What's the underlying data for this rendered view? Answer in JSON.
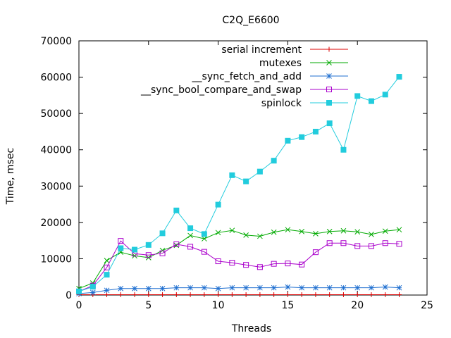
{
  "chart_data": {
    "type": "line",
    "title": "C2Q_E6600",
    "xlabel": "Threads",
    "ylabel": "Time, msec",
    "xlim": [
      0,
      25
    ],
    "ylim": [
      0,
      70000
    ],
    "xticks": [
      "0",
      "5",
      "10",
      "15",
      "20",
      "25"
    ],
    "yticks": [
      "0",
      "10000",
      "20000",
      "30000",
      "40000",
      "50000",
      "60000",
      "70000"
    ],
    "grid": false,
    "legend_position": "top-right",
    "x": [
      0,
      1,
      2,
      3,
      4,
      5,
      6,
      7,
      8,
      9,
      10,
      11,
      12,
      13,
      14,
      15,
      16,
      17,
      18,
      19,
      20,
      21,
      22,
      23
    ],
    "series": [
      {
        "name": "serial increment",
        "color": "#dd0000",
        "marker": "plus",
        "values": [
          100,
          100,
          100,
          100,
          100,
          100,
          100,
          100,
          100,
          100,
          100,
          100,
          100,
          100,
          100,
          100,
          100,
          100,
          100,
          100,
          100,
          100,
          100,
          100
        ]
      },
      {
        "name": "mutexes",
        "color": "#00aa00",
        "marker": "cross",
        "values": [
          1800,
          3300,
          9500,
          11800,
          10800,
          10300,
          12300,
          13700,
          16400,
          15500,
          17200,
          17800,
          16500,
          16200,
          17300,
          18000,
          17500,
          16900,
          17500,
          17700,
          17400,
          16700,
          17600,
          18000
        ]
      },
      {
        "name": "__sync_fetch_and_add",
        "color": "#1f6fd0",
        "marker": "star",
        "values": [
          400,
          700,
          1300,
          1800,
          1800,
          1800,
          1800,
          2000,
          2000,
          2000,
          1800,
          2000,
          2000,
          2000,
          2000,
          2200,
          2000,
          2000,
          2000,
          2000,
          2000,
          2000,
          2200,
          2000
        ]
      },
      {
        "name": "__sync_bool_compare_and_swap",
        "color": "#aa00cc",
        "marker": "square-open",
        "values": [
          1000,
          2600,
          7600,
          14900,
          11400,
          11000,
          11500,
          14000,
          13300,
          11900,
          9300,
          8900,
          8300,
          7700,
          8600,
          8700,
          8400,
          11800,
          14300,
          14300,
          13500,
          13500,
          14300,
          14100
        ]
      },
      {
        "name": "spinlock",
        "color": "#22ccdd",
        "marker": "square-filled",
        "values": [
          1000,
          2300,
          5600,
          12900,
          12500,
          13800,
          17000,
          23300,
          18400,
          16800,
          24900,
          33000,
          31300,
          34000,
          37000,
          42500,
          43500,
          45000,
          47300,
          40000,
          54800,
          53400,
          55200,
          60100
        ]
      }
    ]
  }
}
